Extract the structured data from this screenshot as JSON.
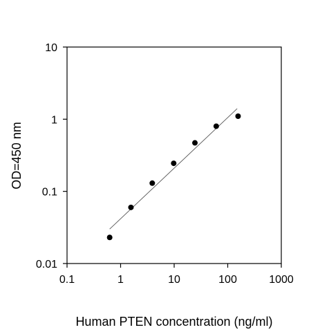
{
  "chart_data": {
    "type": "scatter",
    "xlabel": "Human PTEN concentration (ng/ml)",
    "ylabel": "OD=450 nm",
    "xscale": "log",
    "yscale": "log",
    "xlim": [
      0.1,
      1000
    ],
    "ylim": [
      0.01,
      10
    ],
    "x_ticks": [
      0.1,
      1,
      10,
      100,
      1000
    ],
    "x_tick_labels": [
      "0.1",
      "1",
      "10",
      "100",
      "1000"
    ],
    "y_ticks": [
      0.01,
      0.1,
      1,
      10
    ],
    "y_tick_labels": [
      "0.01",
      "0.1",
      "1",
      "10"
    ],
    "grid": false,
    "legend": "none",
    "points": {
      "x": [
        0.625,
        1.56,
        3.9,
        9.8,
        24.4,
        61,
        156
      ],
      "y": [
        0.023,
        0.06,
        0.13,
        0.245,
        0.47,
        0.8,
        1.1
      ]
    },
    "fit_line": {
      "x": [
        0.625,
        150
      ],
      "y": [
        0.03,
        1.4
      ]
    },
    "colors": {
      "points": "#000000",
      "fit_line": "#555555",
      "axes": "#000000"
    }
  }
}
